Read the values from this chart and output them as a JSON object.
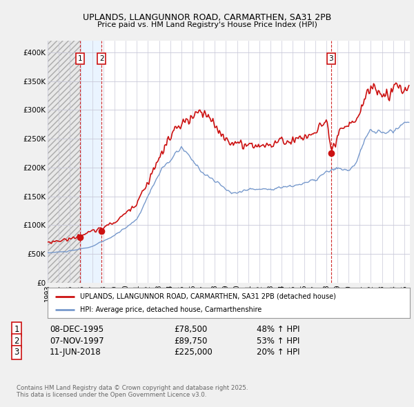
{
  "title": "UPLANDS, LLANGUNNOR ROAD, CARMARTHEN, SA31 2PB",
  "subtitle": "Price paid vs. HM Land Registry's House Price Index (HPI)",
  "ylim": [
    0,
    420000
  ],
  "yticks": [
    0,
    50000,
    100000,
    150000,
    200000,
    250000,
    300000,
    350000,
    400000
  ],
  "ytick_labels": [
    "£0",
    "£50K",
    "£100K",
    "£150K",
    "£200K",
    "£250K",
    "£300K",
    "£350K",
    "£400K"
  ],
  "background_color": "#f0f0f0",
  "plot_bg_color": "#ffffff",
  "grid_color": "#c8c8d8",
  "hpi_color": "#7799cc",
  "price_color": "#cc1111",
  "legend_label_price": "UPLANDS, LLANGUNNOR ROAD, CARMARTHEN, SA31 2PB (detached house)",
  "legend_label_hpi": "HPI: Average price, detached house, Carmarthenshire",
  "annotations": [
    {
      "num": 1,
      "x_year": 1995.92,
      "y": 78500,
      "date": "08-DEC-1995",
      "price": "£78,500",
      "hpi": "48% ↑ HPI"
    },
    {
      "num": 2,
      "x_year": 1997.85,
      "y": 89750,
      "date": "07-NOV-1997",
      "price": "£89,750",
      "hpi": "53% ↑ HPI"
    },
    {
      "num": 3,
      "x_year": 2018.44,
      "y": 225000,
      "date": "11-JUN-2018",
      "price": "£225,000",
      "hpi": "20% ↑ HPI"
    }
  ],
  "footer": "Contains HM Land Registry data © Crown copyright and database right 2025.\nThis data is licensed under the Open Government Licence v3.0.",
  "xtick_years": [
    1993,
    1994,
    1995,
    1996,
    1997,
    1998,
    1999,
    2000,
    2001,
    2002,
    2003,
    2004,
    2005,
    2006,
    2007,
    2008,
    2009,
    2010,
    2011,
    2012,
    2013,
    2014,
    2015,
    2016,
    2017,
    2018,
    2019,
    2020,
    2021,
    2022,
    2023,
    2024,
    2025
  ],
  "xlim_left": 1993.0,
  "xlim_right": 2025.5,
  "hatch_end": 1995.0
}
